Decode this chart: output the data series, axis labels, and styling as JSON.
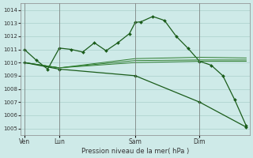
{
  "bg_color": "#ceeae8",
  "grid_color": "#aacfcb",
  "line_dark": "#1a5c1a",
  "line_mid": "#2e7d2e",
  "title": "Pression niveau de la mer( hPa )",
  "ylim": [
    1004.5,
    1014.5
  ],
  "yticks": [
    1005,
    1006,
    1007,
    1008,
    1009,
    1010,
    1011,
    1012,
    1013,
    1014
  ],
  "num_points": 20,
  "xtick_labels": [
    "Ven",
    "Lun",
    "Sam",
    "Dim"
  ],
  "xtick_pos": [
    0,
    3,
    9.5,
    15
  ],
  "vline_pos": [
    0,
    3,
    9.5,
    15
  ],
  "line1_x": [
    0,
    1,
    2,
    3,
    4,
    5,
    6,
    7,
    8,
    9,
    9.5,
    10,
    11,
    12,
    13,
    14,
    15,
    16,
    17,
    18,
    19
  ],
  "line1_y": [
    1011.0,
    1010.2,
    1009.5,
    1011.1,
    1011.0,
    1010.8,
    1011.5,
    1010.9,
    1011.5,
    1012.2,
    1013.05,
    1013.1,
    1013.5,
    1013.2,
    1012.0,
    1011.1,
    1010.1,
    1009.8,
    1009.0,
    1007.2,
    1005.2
  ],
  "line2_x": [
    0,
    3,
    9.5,
    15,
    19
  ],
  "line2_y": [
    1010.0,
    1009.6,
    1010.0,
    1010.1,
    1010.1
  ],
  "line3_x": [
    0,
    3,
    9.5,
    15,
    19
  ],
  "line3_y": [
    1010.0,
    1009.6,
    1010.15,
    1010.2,
    1010.2
  ],
  "line4_x": [
    0,
    3,
    9.5,
    15,
    19
  ],
  "line4_y": [
    1010.0,
    1009.6,
    1010.3,
    1010.4,
    1010.35
  ],
  "line5_x": [
    0,
    3,
    9.5,
    15,
    19
  ],
  "line5_y": [
    1010.0,
    1009.5,
    1009.0,
    1007.0,
    1005.1
  ]
}
